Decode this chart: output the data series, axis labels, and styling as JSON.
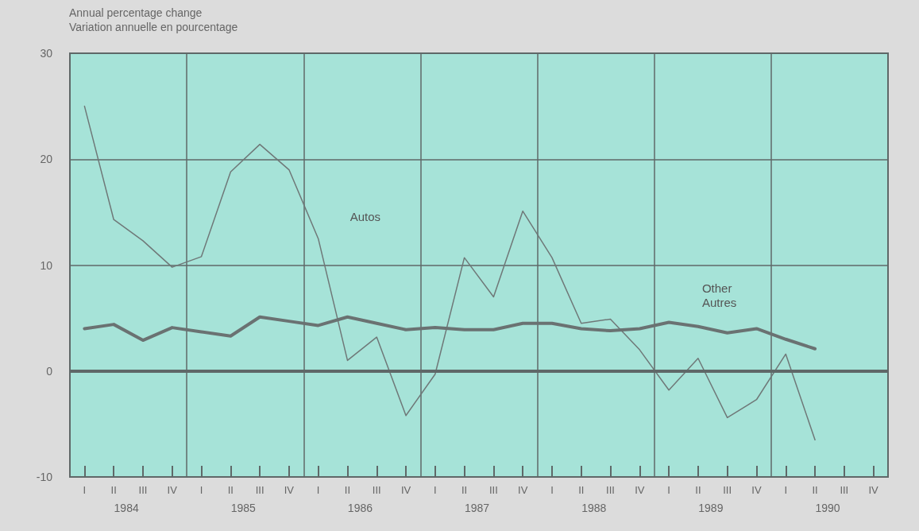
{
  "chart_data": {
    "type": "line",
    "title": "Annual percentage change",
    "subtitle": "Variation annuelle en pourcentage",
    "categories": [
      "I",
      "II",
      "III",
      "IV",
      "I",
      "II",
      "III",
      "IV",
      "I",
      "II",
      "III",
      "IV",
      "I",
      "II",
      "III",
      "IV",
      "I",
      "II",
      "III",
      "IV",
      "I",
      "II",
      "III",
      "IV",
      "I",
      "II",
      "III",
      "IV"
    ],
    "series": [
      {
        "name": "Autos",
        "color": "#6f7878",
        "values": [
          25,
          14.3,
          12.3,
          9.8,
          10.8,
          18.8,
          21.4,
          19,
          12.5,
          1,
          3.2,
          -4.2,
          -0.3,
          10.7,
          7,
          15.1,
          10.7,
          4.5,
          4.9,
          2,
          -1.8,
          1.2,
          -4.4,
          -2.7,
          1.6,
          -6.5,
          null,
          null
        ]
      },
      {
        "name": "Other\nAutres",
        "color": "#6a7272",
        "values": [
          4,
          4.4,
          2.9,
          4.1,
          3.7,
          3.3,
          5.1,
          4.7,
          4.3,
          5.1,
          4.5,
          3.9,
          4.1,
          3.9,
          3.9,
          4.5,
          4.5,
          4,
          3.8,
          4,
          4.6,
          4.2,
          3.6,
          4,
          3,
          2.1,
          null,
          null
        ]
      }
    ],
    "ylim": [
      -10,
      30
    ],
    "yticks": [
      -10,
      0,
      10,
      20,
      30
    ],
    "grid": true,
    "legend": false,
    "marker": "none",
    "line_style": "solid",
    "ref_lines": [
      {
        "axis": "y",
        "value": 0,
        "color": "#5f6868"
      }
    ],
    "annotations": [
      "1984",
      "1985",
      "1986",
      "1987",
      "1988",
      "1989",
      "1990"
    ]
  }
}
